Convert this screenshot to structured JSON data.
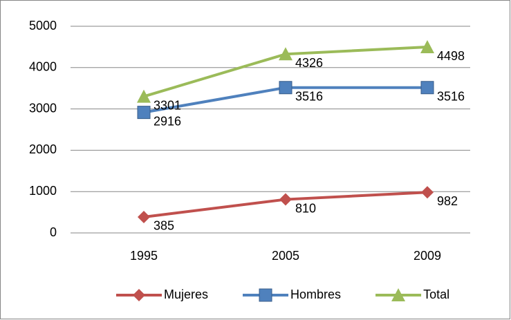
{
  "chart_data": {
    "type": "line",
    "categories": [
      "1995",
      "2005",
      "2009"
    ],
    "series": [
      {
        "name": "Mujeres",
        "color": "#c0504d",
        "marker": "diamond",
        "values": [
          385,
          810,
          982
        ]
      },
      {
        "name": "Hombres",
        "color": "#4f81bd",
        "marker": "square",
        "values": [
          2916,
          3516,
          3516
        ]
      },
      {
        "name": "Total",
        "color": "#9bbb59",
        "marker": "triangle",
        "values": [
          3301,
          4326,
          4498
        ]
      }
    ],
    "ylim": [
      0,
      5000
    ],
    "yticks": [
      0,
      1000,
      2000,
      3000,
      4000,
      5000
    ],
    "grid": true,
    "legend": "bottom",
    "data_labels": true
  }
}
